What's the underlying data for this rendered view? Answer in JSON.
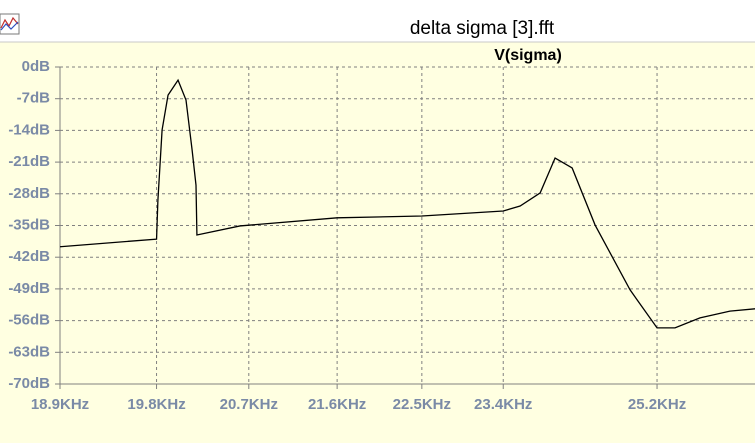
{
  "window": {
    "title": "delta sigma [3].fft"
  },
  "chart_data": {
    "type": "line",
    "xscale": "log",
    "grid": true,
    "x": [
      18900,
      19800,
      19813,
      19853,
      19910,
      20006,
      20083,
      20142,
      20180,
      20189,
      20612,
      21600,
      22500,
      23400,
      23591,
      23820,
      23992,
      24190,
      24459,
      24874,
      25200,
      25419,
      25727,
      26101,
      26418
    ],
    "series": [
      {
        "name": "V(sigma)",
        "color": "#000000",
        "values": [
          -39.7,
          -38.0,
          -29.4,
          -13.9,
          -6.2,
          -2.9,
          -7.3,
          -18.3,
          -26.1,
          -37.1,
          -35.1,
          -33.3,
          -32.9,
          -31.8,
          -30.7,
          -27.8,
          -20.1,
          -22.3,
          -34.9,
          -49.2,
          -57.6,
          -57.6,
          -55.4,
          -53.9,
          -53.4
        ]
      }
    ],
    "xlim": [
      18900,
      26418
    ],
    "ylim": [
      -70,
      0
    ],
    "xticks": [
      {
        "value": 18900,
        "label": "18.9KHz"
      },
      {
        "value": 19800,
        "label": "19.8KHz"
      },
      {
        "value": 20700,
        "label": "20.7KHz"
      },
      {
        "value": 21600,
        "label": "21.6KHz"
      },
      {
        "value": 22500,
        "label": "22.5KHz"
      },
      {
        "value": 23400,
        "label": "23.4KHz"
      },
      {
        "value": 25200,
        "label": "25.2KHz"
      }
    ],
    "yticks": [
      {
        "value": 0,
        "label": "0dB"
      },
      {
        "value": -7,
        "label": "-7dB"
      },
      {
        "value": -14,
        "label": "-14dB"
      },
      {
        "value": -21,
        "label": "-21dB"
      },
      {
        "value": -28,
        "label": "-28dB"
      },
      {
        "value": -35,
        "label": "-35dB"
      },
      {
        "value": -42,
        "label": "-42dB"
      },
      {
        "value": -49,
        "label": "-49dB"
      },
      {
        "value": -56,
        "label": "-56dB"
      },
      {
        "value": -63,
        "label": "-63dB"
      },
      {
        "value": -70,
        "label": "-70dB"
      }
    ]
  }
}
